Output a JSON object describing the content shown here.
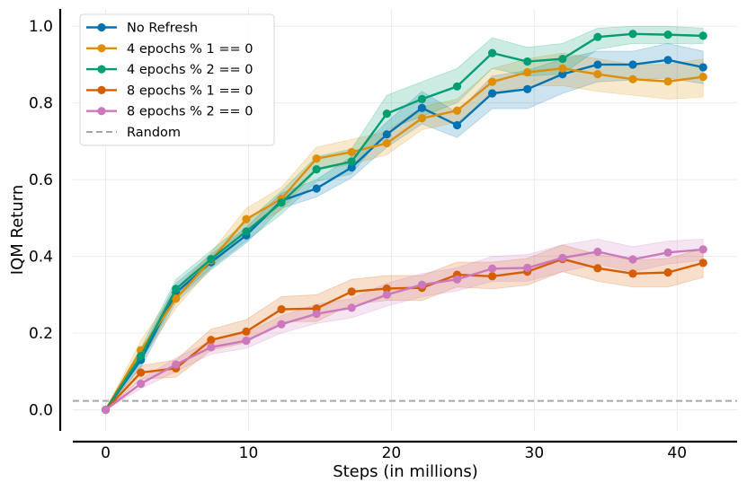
{
  "chart_data": {
    "type": "line",
    "xlabel": "Steps (in millions)",
    "ylabel": "IQM Return",
    "xlim": [
      -2.3,
      44.2
    ],
    "ylim": [
      -0.055,
      1.045
    ],
    "xticks": [
      0,
      10,
      20,
      30,
      40
    ],
    "yticks": [
      0.0,
      0.2,
      0.4,
      0.6,
      0.8,
      1.0
    ],
    "ytick_labels": [
      "0.0",
      "0.2",
      "0.4",
      "0.6",
      "0.8",
      "1.0"
    ],
    "grid": true,
    "legend_position": "upper-left",
    "x": [
      0,
      2.46,
      4.92,
      7.38,
      9.84,
      12.3,
      14.76,
      17.22,
      19.68,
      22.14,
      24.6,
      27.06,
      29.52,
      31.98,
      34.44,
      36.9,
      39.36,
      41.82
    ],
    "series": [
      {
        "name": "No Refresh",
        "color": "#0173b2",
        "values": [
          0.0,
          0.13,
          0.305,
          0.385,
          0.455,
          0.545,
          0.577,
          0.632,
          0.718,
          0.787,
          0.742,
          0.825,
          0.836,
          0.875,
          0.9,
          0.9,
          0.912,
          0.893
        ],
        "lower": [
          0.0,
          0.11,
          0.28,
          0.365,
          0.435,
          0.525,
          0.555,
          0.605,
          0.685,
          0.745,
          0.71,
          0.785,
          0.785,
          0.825,
          0.855,
          0.86,
          0.865,
          0.85
        ],
        "upper": [
          0.0,
          0.15,
          0.33,
          0.405,
          0.475,
          0.565,
          0.6,
          0.66,
          0.75,
          0.83,
          0.775,
          0.87,
          0.885,
          0.915,
          0.935,
          0.935,
          0.955,
          0.935
        ]
      },
      {
        "name": "4 epochs % 1 == 0",
        "color": "#de8f05",
        "values": [
          0.0,
          0.155,
          0.29,
          0.39,
          0.497,
          0.55,
          0.655,
          0.672,
          0.695,
          0.76,
          0.78,
          0.855,
          0.88,
          0.89,
          0.875,
          0.862,
          0.856,
          0.868
        ],
        "lower": [
          0.0,
          0.13,
          0.265,
          0.37,
          0.47,
          0.52,
          0.625,
          0.64,
          0.665,
          0.73,
          0.75,
          0.82,
          0.845,
          0.845,
          0.83,
          0.82,
          0.81,
          0.815
        ],
        "upper": [
          0.0,
          0.18,
          0.315,
          0.41,
          0.525,
          0.58,
          0.685,
          0.705,
          0.725,
          0.79,
          0.81,
          0.89,
          0.915,
          0.93,
          0.915,
          0.9,
          0.9,
          0.915
        ]
      },
      {
        "name": "4 epochs % 2 == 0",
        "color": "#029e73",
        "values": [
          0.0,
          0.14,
          0.315,
          0.393,
          0.465,
          0.54,
          0.627,
          0.647,
          0.772,
          0.81,
          0.843,
          0.93,
          0.908,
          0.915,
          0.972,
          0.98,
          0.978,
          0.975
        ],
        "lower": [
          0.0,
          0.12,
          0.29,
          0.37,
          0.44,
          0.51,
          0.595,
          0.615,
          0.73,
          0.765,
          0.8,
          0.89,
          0.87,
          0.875,
          0.94,
          0.955,
          0.955,
          0.955
        ],
        "upper": [
          0.0,
          0.16,
          0.34,
          0.415,
          0.49,
          0.57,
          0.66,
          0.68,
          0.82,
          0.855,
          0.89,
          0.97,
          0.945,
          0.955,
          0.995,
          1.0,
          1.0,
          0.995
        ]
      },
      {
        "name": "8 epochs % 1 == 0",
        "color": "#d55e00",
        "values": [
          0.0,
          0.097,
          0.108,
          0.182,
          0.204,
          0.262,
          0.264,
          0.308,
          0.316,
          0.318,
          0.352,
          0.348,
          0.36,
          0.393,
          0.369,
          0.355,
          0.358,
          0.383
        ],
        "lower": [
          0.0,
          0.08,
          0.085,
          0.155,
          0.175,
          0.23,
          0.23,
          0.275,
          0.285,
          0.285,
          0.32,
          0.315,
          0.325,
          0.36,
          0.335,
          0.32,
          0.32,
          0.345
        ],
        "upper": [
          0.0,
          0.115,
          0.13,
          0.21,
          0.235,
          0.295,
          0.3,
          0.34,
          0.35,
          0.35,
          0.385,
          0.385,
          0.395,
          0.43,
          0.405,
          0.39,
          0.395,
          0.42
        ]
      },
      {
        "name": "8 epochs % 2 == 0",
        "color": "#cc78bc",
        "values": [
          0.0,
          0.068,
          0.118,
          0.163,
          0.18,
          0.223,
          0.25,
          0.266,
          0.3,
          0.326,
          0.34,
          0.368,
          0.37,
          0.396,
          0.412,
          0.392,
          0.41,
          0.418
        ],
        "lower": [
          0.0,
          0.055,
          0.1,
          0.145,
          0.16,
          0.2,
          0.225,
          0.24,
          0.27,
          0.295,
          0.31,
          0.335,
          0.335,
          0.36,
          0.38,
          0.36,
          0.38,
          0.39
        ],
        "upper": [
          0.0,
          0.08,
          0.135,
          0.18,
          0.2,
          0.245,
          0.275,
          0.29,
          0.33,
          0.355,
          0.37,
          0.4,
          0.405,
          0.43,
          0.445,
          0.425,
          0.44,
          0.445
        ]
      }
    ],
    "reference_lines": [
      {
        "name": "Random",
        "color": "#a6a6a6",
        "value": 0.023,
        "style": "dashed"
      }
    ]
  }
}
